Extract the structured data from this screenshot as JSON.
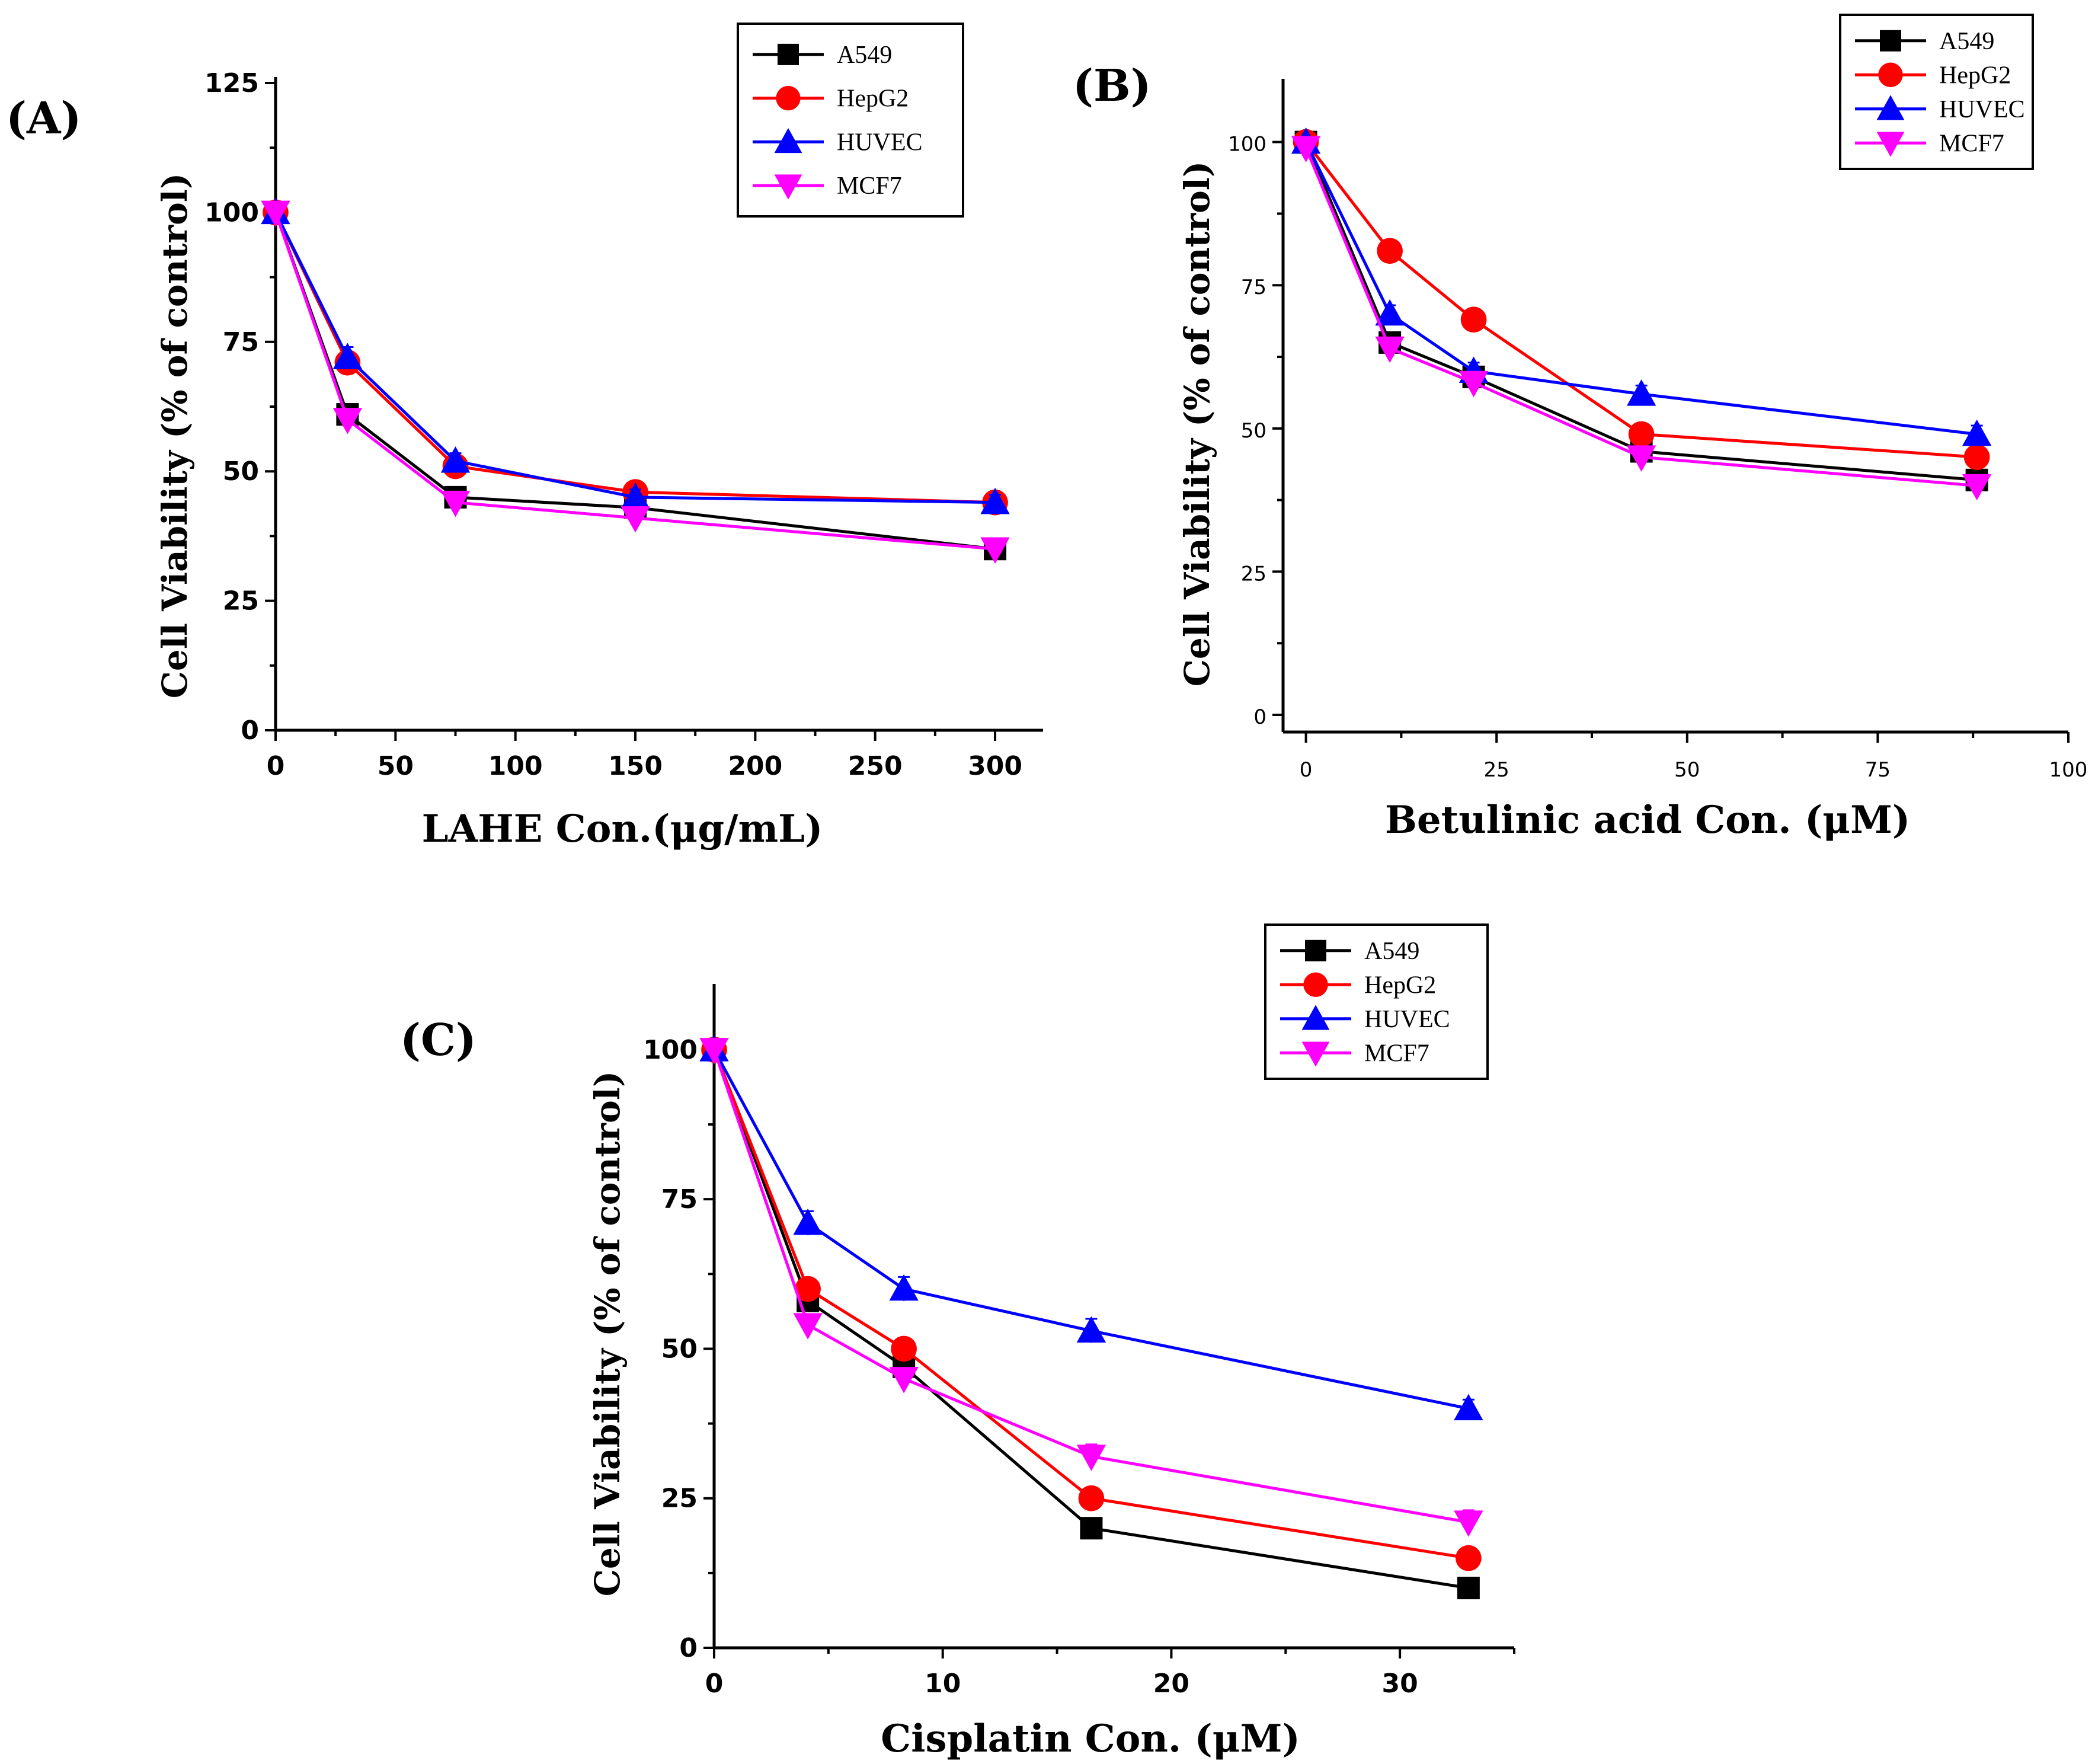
{
  "colors": {
    "A549": "#000000",
    "HepG2": "#ff0000",
    "HUVEC": "#0000ff",
    "MCF7": "#ff00ff"
  },
  "markers": {
    "A549": "square",
    "HepG2": "circle",
    "HUVEC": "triangle-up",
    "MCF7": "triangle-down"
  },
  "chart_data": [
    {
      "panel": "(A)",
      "type": "line",
      "xlabel": "LAHE Con.(μg/mL)",
      "ylabel": "Cell Viability (% of control)",
      "xlim": [
        0,
        320
      ],
      "ylim": [
        0,
        125
      ],
      "xticks": [
        0,
        50,
        100,
        150,
        200,
        250,
        300
      ],
      "yticks": [
        0,
        25,
        50,
        75,
        100,
        125
      ],
      "legend": "top-right",
      "x": [
        0,
        30,
        75,
        150,
        300
      ],
      "series": [
        {
          "name": "A549",
          "values": [
            100,
            61,
            45,
            43,
            35
          ],
          "err": [
            0.5,
            2,
            1.5,
            1.5,
            1.5
          ]
        },
        {
          "name": "HepG2",
          "values": [
            100,
            71,
            51,
            46,
            44
          ],
          "err": [
            0.5,
            1.5,
            1.5,
            1.5,
            1.5
          ]
        },
        {
          "name": "HUVEC",
          "values": [
            100,
            72,
            52,
            45,
            44
          ],
          "err": [
            0.5,
            2,
            1.5,
            1.5,
            1.5
          ]
        },
        {
          "name": "MCF7",
          "values": [
            100,
            60,
            44,
            41,
            35
          ],
          "err": [
            0.5,
            1.5,
            1.5,
            1.5,
            1.5
          ]
        }
      ]
    },
    {
      "panel": "(B)",
      "type": "line",
      "xlabel": "Betulinic acid Con. (μM)",
      "ylabel": "Cell Viability (% of control)",
      "xlim": [
        -3,
        100
      ],
      "ylim": [
        -3,
        110
      ],
      "xticks": [
        0,
        25,
        50,
        75,
        100
      ],
      "yticks": [
        0,
        25,
        50,
        75,
        100
      ],
      "legend": "top-right",
      "x": [
        0,
        11,
        22,
        44,
        88
      ],
      "series": [
        {
          "name": "A549",
          "values": [
            100,
            65,
            59,
            46,
            41
          ],
          "err": [
            0.5,
            1.5,
            1.5,
            1.5,
            1.5
          ]
        },
        {
          "name": "HepG2",
          "values": [
            100,
            81,
            69,
            49,
            45
          ],
          "err": [
            0.5,
            1.5,
            1.5,
            1.5,
            1.5
          ]
        },
        {
          "name": "HUVEC",
          "values": [
            100,
            70,
            60,
            56,
            49
          ],
          "err": [
            0.5,
            1.5,
            1.5,
            1.5,
            1.5
          ]
        },
        {
          "name": "MCF7",
          "values": [
            99,
            64,
            58,
            45,
            40
          ],
          "err": [
            0.5,
            1.5,
            1.5,
            1.5,
            1.5
          ]
        }
      ]
    },
    {
      "panel": "(C)",
      "type": "line",
      "xlabel": "Cisplatin Con. (μM)",
      "ylabel": "Cell Viability (% of control)",
      "xlim": [
        0,
        35
      ],
      "ylim": [
        0,
        110
      ],
      "xticks": [
        0,
        10,
        20,
        30
      ],
      "yticks": [
        0,
        25,
        50,
        75,
        100
      ],
      "legend": "top-right",
      "x": [
        0,
        4.1,
        8.3,
        16.5,
        33
      ],
      "series": [
        {
          "name": "A549",
          "values": [
            100,
            58,
            47,
            20,
            10
          ],
          "err": [
            0.5,
            1.5,
            1.5,
            1.5,
            1
          ]
        },
        {
          "name": "HepG2",
          "values": [
            100,
            60,
            50,
            25,
            15
          ],
          "err": [
            0.5,
            1.5,
            1.5,
            1.5,
            1
          ]
        },
        {
          "name": "HUVEC",
          "values": [
            100,
            71,
            60,
            53,
            40
          ],
          "err": [
            0.5,
            2,
            2,
            2,
            1.5
          ]
        },
        {
          "name": "MCF7",
          "values": [
            100,
            54,
            45,
            32,
            21
          ],
          "err": [
            0.5,
            1.5,
            1.5,
            2,
            2
          ]
        }
      ]
    }
  ]
}
